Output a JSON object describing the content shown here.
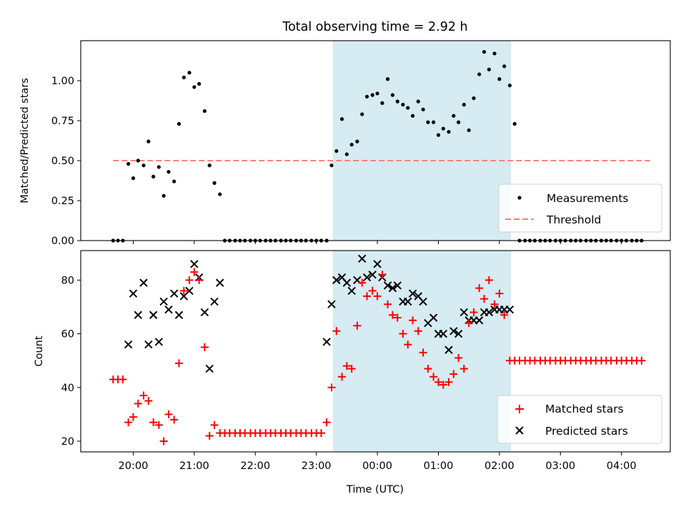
{
  "chart_data": [
    {
      "type": "scatter",
      "title": "Total observing time = 2.92 h",
      "ylabel": "Matched/Predicted stars",
      "xlabel": "",
      "x_unit": "hours UTC, continuing past midnight (24.5 = 00:30 next day)",
      "xlim": [
        19.14,
        28.8
      ],
      "ylim": [
        0,
        1.25
      ],
      "yticks": [
        0.0,
        0.25,
        0.5,
        0.75,
        1.0
      ],
      "ytick_labels": [
        "0.00",
        "0.25",
        "0.50",
        "0.75",
        "1.00"
      ],
      "grid": false,
      "legend": "bottom-right",
      "shaded_region": {
        "x_start": 23.27,
        "x_end": 26.19,
        "color": "#add8e6"
      },
      "series": [
        {
          "name": "Measurements",
          "marker": "dot",
          "color": "#000000",
          "x": [
            19.67,
            19.75,
            19.83,
            19.92,
            20.0,
            20.08,
            20.17,
            20.25,
            20.33,
            20.42,
            20.5,
            20.58,
            20.67,
            20.75,
            20.83,
            20.92,
            21.0,
            21.08,
            21.17,
            21.25,
            21.33,
            21.42,
            21.5,
            21.58,
            21.67,
            21.75,
            21.83,
            21.92,
            22.0,
            22.08,
            22.17,
            22.25,
            22.33,
            22.42,
            22.5,
            22.58,
            22.67,
            22.75,
            22.83,
            22.92,
            23.0,
            23.08,
            23.17,
            23.25,
            23.33,
            23.42,
            23.5,
            23.58,
            23.67,
            23.75,
            23.83,
            23.92,
            24.0,
            24.08,
            24.17,
            24.25,
            24.33,
            24.42,
            24.5,
            24.58,
            24.67,
            24.75,
            24.83,
            24.92,
            25.0,
            25.08,
            25.17,
            25.25,
            25.33,
            25.42,
            25.5,
            25.58,
            25.67,
            25.75,
            25.83,
            25.92,
            26.0,
            26.08,
            26.17,
            26.25,
            26.33,
            26.42,
            26.5,
            26.58,
            26.67,
            26.75,
            26.83,
            26.92,
            27.0,
            27.08,
            27.17,
            27.25,
            27.33,
            27.42,
            27.5,
            27.58,
            27.67,
            27.75,
            27.83,
            27.92,
            28.0,
            28.08,
            28.17,
            28.25,
            28.33
          ],
          "y": [
            0,
            0,
            0,
            0.48,
            0.39,
            0.5,
            0.47,
            0.62,
            0.4,
            0.46,
            0.28,
            0.43,
            0.37,
            0.73,
            1.02,
            1.05,
            0.96,
            0.98,
            0.81,
            0.47,
            0.36,
            0.29,
            0,
            0,
            0,
            0,
            0,
            0,
            0,
            0,
            0,
            0,
            0,
            0,
            0,
            0,
            0,
            0,
            0,
            0,
            0,
            0,
            0,
            0.47,
            0.56,
            0.76,
            0.54,
            0.6,
            0.62,
            0.79,
            0.9,
            0.91,
            0.92,
            0.86,
            1.01,
            0.91,
            0.87,
            0.85,
            0.83,
            0.78,
            0.87,
            0.82,
            0.74,
            0.74,
            0.66,
            0.7,
            0.68,
            0.78,
            0.74,
            0.85,
            0.69,
            0.89,
            1.04,
            1.18,
            1.07,
            1.17,
            1.01,
            1.09,
            0.97,
            0.73,
            0,
            0,
            0,
            0,
            0,
            0,
            0,
            0,
            0,
            0,
            0,
            0,
            0,
            0,
            0,
            0,
            0,
            0,
            0,
            0,
            0,
            0,
            0,
            0,
            0
          ]
        },
        {
          "name": "Threshold",
          "marker": "dashed-line",
          "color": "#ff7f7f",
          "x": [
            19.67,
            28.47
          ],
          "y": [
            0.5,
            0.5
          ]
        }
      ]
    },
    {
      "type": "scatter",
      "title": "",
      "ylabel": "Count",
      "xlabel": "Time (UTC)",
      "x_unit": "hours UTC, continuing past midnight (24.5 = 00:30 next day)",
      "xlim": [
        19.14,
        28.8
      ],
      "ylim": [
        16,
        91
      ],
      "yticks": [
        20,
        40,
        60,
        80
      ],
      "ytick_labels": [
        "20",
        "40",
        "60",
        "80"
      ],
      "xticks": [
        20,
        21,
        22,
        23,
        24,
        25,
        26,
        27,
        28
      ],
      "xtick_labels": [
        "20:00",
        "21:00",
        "22:00",
        "23:00",
        "00:00",
        "01:00",
        "02:00",
        "03:00",
        "04:00"
      ],
      "grid": false,
      "legend": "bottom-right",
      "shaded_region": {
        "x_start": 23.27,
        "x_end": 26.19,
        "color": "#add8e6"
      },
      "series": [
        {
          "name": "Matched stars",
          "marker": "plus",
          "color": "#ff0000",
          "x": [
            19.67,
            19.75,
            19.83,
            19.92,
            20.0,
            20.08,
            20.17,
            20.25,
            20.33,
            20.42,
            20.5,
            20.58,
            20.67,
            20.75,
            20.83,
            20.92,
            21.0,
            21.08,
            21.17,
            21.25,
            21.33,
            21.42,
            21.5,
            21.58,
            21.67,
            21.75,
            21.83,
            21.92,
            22.0,
            22.08,
            22.17,
            22.25,
            22.33,
            22.42,
            22.5,
            22.58,
            22.67,
            22.75,
            22.83,
            22.92,
            23.0,
            23.08,
            23.17,
            23.25,
            23.33,
            23.42,
            23.5,
            23.58,
            23.67,
            23.75,
            23.83,
            23.92,
            24.0,
            24.08,
            24.17,
            24.25,
            24.33,
            24.42,
            24.5,
            24.58,
            24.67,
            24.75,
            24.83,
            24.92,
            25.0,
            25.08,
            25.17,
            25.25,
            25.33,
            25.42,
            25.5,
            25.58,
            25.67,
            25.75,
            25.83,
            25.92,
            26.0,
            26.08,
            26.17,
            26.25,
            26.33,
            26.42,
            26.5,
            26.58,
            26.67,
            26.75,
            26.83,
            26.92,
            27.0,
            27.08,
            27.17,
            27.25,
            27.33,
            27.42,
            27.5,
            27.58,
            27.67,
            27.75,
            27.83,
            27.92,
            28.0,
            28.08,
            28.17,
            28.25,
            28.33
          ],
          "y": [
            43,
            43,
            43,
            27,
            29,
            34,
            37,
            35,
            27,
            26,
            20,
            30,
            28,
            49,
            76,
            80,
            83,
            80,
            55,
            22,
            26,
            23,
            23,
            23,
            23,
            23,
            23,
            23,
            23,
            23,
            23,
            23,
            23,
            23,
            23,
            23,
            23,
            23,
            23,
            23,
            23,
            23,
            27,
            40,
            61,
            44,
            48,
            47,
            63,
            79,
            74,
            76,
            74,
            82,
            71,
            67,
            66,
            60,
            56,
            65,
            61,
            53,
            47,
            44,
            42,
            41,
            42,
            45,
            51,
            47,
            64,
            68,
            77,
            73,
            80,
            71,
            75,
            67,
            50,
            50,
            50,
            50,
            50,
            50,
            50,
            50,
            50,
            50,
            50,
            50,
            50,
            50,
            50,
            50,
            50,
            50,
            50,
            50,
            50,
            50,
            50,
            50,
            50,
            50,
            50
          ]
        },
        {
          "name": "Predicted stars",
          "marker": "x",
          "color": "#000000",
          "x": [
            19.92,
            20.0,
            20.08,
            20.17,
            20.25,
            20.33,
            20.42,
            20.5,
            20.58,
            20.67,
            20.75,
            20.83,
            20.92,
            21.0,
            21.08,
            21.17,
            21.25,
            21.33,
            21.42,
            23.17,
            23.25,
            23.33,
            23.42,
            23.5,
            23.58,
            23.67,
            23.75,
            23.83,
            23.92,
            24.0,
            24.08,
            24.17,
            24.25,
            24.33,
            24.42,
            24.5,
            24.58,
            24.67,
            24.75,
            24.83,
            24.92,
            25.0,
            25.08,
            25.17,
            25.25,
            25.33,
            25.42,
            25.5,
            25.58,
            25.67,
            25.75,
            25.83,
            25.92,
            26.0,
            26.08,
            26.17
          ],
          "y": [
            56,
            75,
            67,
            79,
            56,
            67,
            57,
            72,
            69,
            75,
            67,
            74,
            76,
            86,
            81,
            68,
            47,
            72,
            79,
            57,
            71,
            80,
            81,
            79,
            76,
            80,
            88,
            81,
            82,
            86,
            81,
            78,
            77,
            78,
            72,
            72,
            75,
            74,
            72,
            64,
            66,
            60,
            60,
            54,
            61,
            60,
            68,
            65,
            65,
            65,
            68,
            68,
            69,
            69,
            69,
            69
          ]
        }
      ]
    }
  ]
}
